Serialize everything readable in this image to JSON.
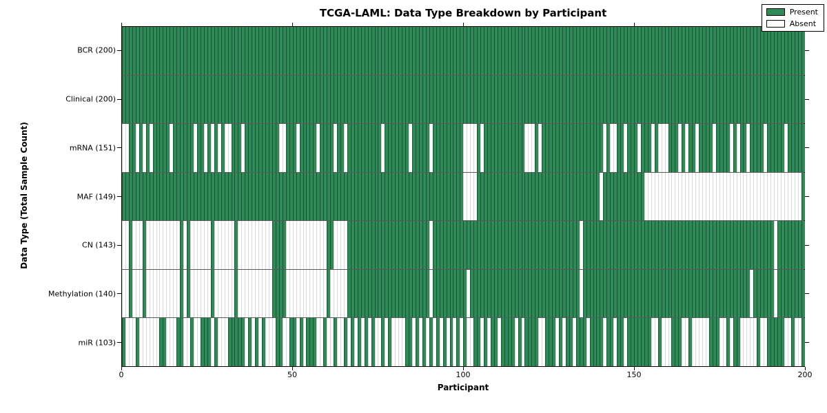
{
  "chart_data": {
    "type": "heatmap",
    "title": "TCGA-LAML: Data Type Breakdown by Participant",
    "xlabel": "Participant",
    "ylabel": "Data Type (Total Sample Count)",
    "n_participants": 200,
    "x_ticks": [
      0,
      50,
      100,
      150,
      200
    ],
    "xlim": [
      0,
      200
    ],
    "grid": "row-dividers-only",
    "legend_position": "upper-right",
    "legend": [
      {
        "label": "Present",
        "color": "#2e8b57"
      },
      {
        "label": "Absent",
        "color": "#ffffff"
      }
    ],
    "colors": {
      "present": "#2e8b57",
      "absent": "#ffffff",
      "border": "#000000"
    },
    "rows": [
      {
        "label": "BCR (200)",
        "name": "BCR",
        "present_count": 200,
        "absent": []
      },
      {
        "label": "Clinical (200)",
        "name": "Clinical",
        "present_count": 200,
        "absent": []
      },
      {
        "label": "mRNA (151)",
        "name": "mRNA",
        "present_count": 151,
        "absent": [
          0,
          1,
          4,
          6,
          8,
          14,
          21,
          24,
          26,
          28,
          30,
          31,
          35,
          46,
          47,
          51,
          57,
          62,
          65,
          76,
          84,
          90,
          100,
          101,
          102,
          103,
          105,
          118,
          119,
          120,
          122,
          141,
          143,
          144,
          147,
          151,
          155,
          157,
          158,
          159,
          163,
          165,
          168,
          173,
          178,
          180,
          183,
          188,
          194
        ]
      },
      {
        "label": "MAF (149)",
        "name": "MAF",
        "present_count": 149,
        "absent": [
          100,
          101,
          102,
          103,
          140,
          153,
          154,
          155,
          156,
          157,
          158,
          159,
          160,
          161,
          162,
          163,
          164,
          165,
          166,
          167,
          168,
          169,
          170,
          171,
          172,
          173,
          174,
          175,
          176,
          177,
          178,
          179,
          180,
          181,
          182,
          183,
          184,
          185,
          186,
          187,
          188,
          189,
          190,
          191,
          192,
          193,
          194,
          195,
          196,
          197,
          198
        ]
      },
      {
        "label": "CN (143)",
        "name": "CN",
        "present_count": 143,
        "absent": [
          0,
          1,
          3,
          4,
          5,
          7,
          8,
          9,
          10,
          11,
          12,
          13,
          14,
          15,
          16,
          18,
          20,
          21,
          22,
          23,
          24,
          25,
          27,
          28,
          29,
          30,
          31,
          32,
          34,
          35,
          36,
          37,
          38,
          39,
          40,
          41,
          42,
          43,
          48,
          49,
          50,
          51,
          52,
          53,
          54,
          55,
          56,
          57,
          58,
          59,
          62,
          63,
          64,
          65,
          90,
          134,
          191
        ]
      },
      {
        "label": "Methylation (140)",
        "name": "Methylation",
        "present_count": 140,
        "absent": [
          0,
          1,
          3,
          4,
          5,
          7,
          8,
          9,
          10,
          11,
          12,
          13,
          14,
          15,
          16,
          18,
          20,
          21,
          22,
          23,
          24,
          25,
          27,
          28,
          29,
          30,
          31,
          32,
          34,
          35,
          36,
          37,
          38,
          39,
          40,
          41,
          42,
          43,
          48,
          49,
          50,
          51,
          52,
          53,
          54,
          55,
          56,
          57,
          58,
          59,
          61,
          62,
          63,
          64,
          65,
          90,
          101,
          134,
          184,
          191
        ]
      },
      {
        "label": "miR (103)",
        "name": "miR",
        "present_count": 103,
        "absent": [
          1,
          2,
          3,
          5,
          6,
          7,
          8,
          9,
          10,
          13,
          14,
          15,
          18,
          19,
          21,
          22,
          26,
          28,
          29,
          30,
          36,
          38,
          40,
          42,
          43,
          44,
          47,
          48,
          51,
          53,
          57,
          58,
          60,
          61,
          63,
          64,
          66,
          68,
          70,
          72,
          74,
          75,
          77,
          79,
          80,
          81,
          82,
          85,
          87,
          89,
          91,
          93,
          95,
          97,
          99,
          101,
          102,
          105,
          107,
          110,
          115,
          117,
          122,
          123,
          127,
          129,
          132,
          136,
          141,
          144,
          147,
          155,
          156,
          158,
          159,
          160,
          164,
          165,
          167,
          168,
          169,
          170,
          171,
          175,
          176,
          178,
          181,
          182,
          183,
          184,
          185,
          187,
          188,
          194,
          195,
          197,
          198
        ]
      }
    ]
  }
}
